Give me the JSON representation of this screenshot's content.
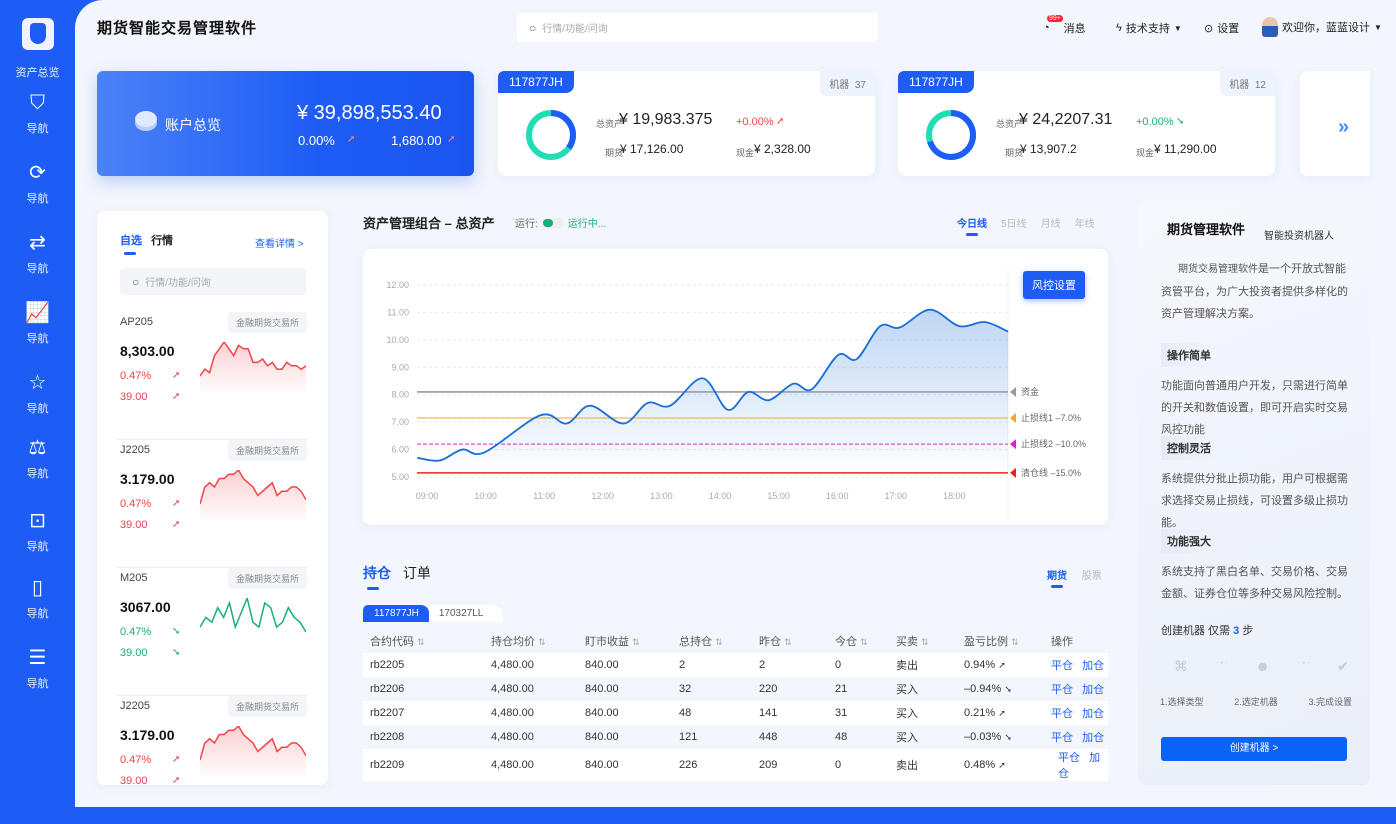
{
  "app": {
    "title": "期货智能交易管理软件"
  },
  "sidebar": {
    "logo_label": "资产总览",
    "items": [
      {
        "icon": "shield-chart-icon",
        "glyph": "⛉",
        "label": "导航"
      },
      {
        "icon": "refresh-icon",
        "glyph": "⟳",
        "label": "导航"
      },
      {
        "icon": "exchange-icon",
        "glyph": "⇄",
        "label": "导航"
      },
      {
        "icon": "trend-chart-icon",
        "glyph": "📈",
        "label": "导航"
      },
      {
        "icon": "star-icon",
        "glyph": "☆",
        "label": "导航"
      },
      {
        "icon": "gavel-icon",
        "glyph": "⚖",
        "label": "导航"
      },
      {
        "icon": "robot-icon",
        "glyph": "⊡",
        "label": "导航"
      },
      {
        "icon": "book-icon",
        "glyph": "▯",
        "label": "导航"
      },
      {
        "icon": "clipboard-icon",
        "glyph": "☰",
        "label": "导航"
      }
    ]
  },
  "header": {
    "search_placeholder": "行情/功能/问询",
    "badge": "99+",
    "messages": "消息",
    "support": "技术支持",
    "settings": "设置",
    "welcome": "欢迎你，蓝蓝设计"
  },
  "account": {
    "label": "账户总览",
    "total": "¥ 39,898,553.40",
    "change_pct": "0.00%",
    "change_amt": "1,680.00"
  },
  "accounts": [
    {
      "id": "117877JH",
      "robots_label": "机器",
      "robots": "37",
      "total_label": "总资产",
      "total": "¥ 19,983.375",
      "change": "+0.00%",
      "direction": "up",
      "futures_label": "期货",
      "futures": "¥ 17,126.00",
      "cash_label": "现金",
      "cash": "¥ 2,328.00",
      "donut_blue_fraction": 0.35
    },
    {
      "id": "117877JH",
      "robots_label": "机器",
      "robots": "12",
      "total_label": "总资产",
      "total": "¥ 24,2207.31",
      "change": "+0.00%",
      "direction": "down",
      "futures_label": "期货",
      "futures": "¥ 13,907.2",
      "cash_label": "现金",
      "cash": "¥ 11,290.00",
      "donut_blue_fraction": 0.7
    }
  ],
  "watchlist": {
    "tabs": [
      "自选",
      "行情"
    ],
    "details_link": "查看详情 >",
    "search_placeholder": "行情/功能/问询",
    "items": [
      {
        "code": "AP205",
        "exchange": "金融期货交易所",
        "price": "8,303.00",
        "pct": "0.47%",
        "amt": "39.00",
        "direction": "up",
        "spark": [
          3,
          4,
          3.5,
          6,
          7,
          8,
          7,
          6,
          7.5,
          7,
          7,
          5,
          5,
          5.5,
          4.5,
          5,
          4,
          4,
          5,
          4.5,
          4.5,
          4,
          4.5
        ]
      },
      {
        "code": "J2205",
        "exchange": "金融期货交易所",
        "price": "3.179.00",
        "pct": "0.47%",
        "amt": "39.00",
        "direction": "up",
        "spark": [
          3,
          5,
          5.5,
          5,
          6,
          6,
          6.5,
          6.5,
          7,
          6,
          5.5,
          5,
          4,
          4.5,
          5,
          5.5,
          4,
          4.5,
          4.5,
          5,
          5,
          4.5,
          3.5
        ]
      },
      {
        "code": "M205",
        "exchange": "金融期货交易所",
        "price": "3067.00",
        "pct": "0.47%",
        "amt": "39.00",
        "direction": "down",
        "spark": [
          2,
          4,
          3,
          6,
          4,
          7,
          2,
          5,
          8,
          3,
          2,
          7,
          6,
          2,
          3,
          6,
          4,
          3,
          1
        ]
      },
      {
        "code": "J2205",
        "exchange": "金融期货交易所",
        "price": "3.179.00",
        "pct": "0.47%",
        "amt": "39.00",
        "direction": "up",
        "spark": [
          3,
          5,
          5.5,
          5,
          6,
          6,
          6.5,
          6.5,
          7,
          6,
          5.5,
          5,
          4,
          4.5,
          5,
          5.5,
          4,
          4.5,
          4.5,
          5,
          5,
          4.5,
          3.5
        ]
      }
    ]
  },
  "portfolio": {
    "title": "资产管理组合 – 总资产",
    "run_label": "运行:",
    "run_status": "运行中...",
    "running": true,
    "periods": [
      "今日线",
      "5日线",
      "月线",
      "年线"
    ],
    "active_period": 0,
    "risk_button": "风控设置"
  },
  "chart_data": {
    "type": "line",
    "x": [
      "08:50",
      "09:13",
      "09:36",
      "09:59",
      "10:56",
      "11:23",
      "11:47",
      "12:21",
      "12:46",
      "13:09",
      "13:42",
      "14:08",
      "14:29",
      "14:50",
      "15:15",
      "15:34",
      "16:01",
      "16:20",
      "16:44",
      "17:04",
      "17:35",
      "18:05",
      "18:31",
      "18:55"
    ],
    "values": [
      5.7,
      5.6,
      6.0,
      5.9,
      7.25,
      6.95,
      7.6,
      6.95,
      7.7,
      7.6,
      8.6,
      7.45,
      8.1,
      7.8,
      8.4,
      8.2,
      9.45,
      9.3,
      10.5,
      10.45,
      11.1,
      10.5,
      10.65,
      10.3
    ],
    "yticks": [
      "5.00",
      "6.00",
      "7.00",
      "8.00",
      "9.00",
      "10.00",
      "11.00",
      "12.00"
    ],
    "ylim": [
      5,
      12
    ],
    "xticks": [
      "09:00",
      "10:00",
      "11:00",
      "12:00",
      "13:00",
      "14:00",
      "15:00",
      "16:00",
      "17:00",
      "18:00"
    ],
    "lines": [
      {
        "name": "资金",
        "value": 8.1,
        "color": "#9a9a9a"
      },
      {
        "name": "止损线1 –7.0%",
        "value": 7.15,
        "color": "#f5a623"
      },
      {
        "name": "止损线2 –10.0%",
        "value": 6.2,
        "color": "#e020d0"
      },
      {
        "name": "清仓线 –15.0%",
        "value": 5.15,
        "color": "#f02020"
      }
    ],
    "color": "#1a6fd6",
    "grid": true
  },
  "positions": {
    "tabs": [
      "持仓",
      "订单"
    ],
    "market_tabs": [
      "期货",
      "股票"
    ],
    "account_tabs": [
      "117877JH",
      "170327LL"
    ],
    "columns": [
      "合约代码",
      "持仓均价",
      "盯市收益",
      "总持仓",
      "昨仓",
      "今仓",
      "买卖",
      "盈亏比例",
      "操作"
    ],
    "rows": [
      {
        "code": "rb2205",
        "avg": "4,480.00",
        "pnl": "840.00",
        "total": "2",
        "yest": "2",
        "today": "0",
        "side": "卖出",
        "ratio": "0.94%",
        "dir": "up"
      },
      {
        "code": "rb2206",
        "avg": "4,480.00",
        "pnl": "840.00",
        "total": "32",
        "yest": "220",
        "today": "21",
        "side": "买入",
        "ratio": "–0.94%",
        "dir": "down"
      },
      {
        "code": "rb2207",
        "avg": "4,480.00",
        "pnl": "840.00",
        "total": "48",
        "yest": "141",
        "today": "31",
        "side": "买入",
        "ratio": "0.21%",
        "dir": "up"
      },
      {
        "code": "rb2208",
        "avg": "4,480.00",
        "pnl": "840.00",
        "total": "121",
        "yest": "448",
        "today": "48",
        "side": "买入",
        "ratio": "–0.03%",
        "dir": "down"
      },
      {
        "code": "rb2209",
        "avg": "4,480.00",
        "pnl": "840.00",
        "total": "226",
        "yest": "209",
        "today": "0",
        "side": "卖出",
        "ratio": "0.48%",
        "dir": "up"
      }
    ],
    "actions": [
      "平仓",
      "加仓"
    ]
  },
  "promo": {
    "title": "期货管理软件",
    "subtitle": "智能投资机器人",
    "intro_overlay": "期货交易管理软件",
    "intro": "是一个开放式智能资管平台，为广大投资者提供多样化的资产管理解决方案。",
    "sections": [
      {
        "title": "操作简单",
        "text": "功能面向普通用户开发，只需进行简单的开关和数值设置，即可开启实时交易风控功能"
      },
      {
        "title": "控制灵活",
        "text": "系统提供分批止损功能，用户可根据需求选择交易止损线，可设置多级止损功能。"
      },
      {
        "title": "功能强大",
        "text": "系统支持了黑白名单、交易价格、交易金额、证券仓位等多种交易风险控制。"
      }
    ],
    "steps_prefix": "创建机器  仅需",
    "steps_count": "3",
    "steps_suffix": "步",
    "steps": [
      "1.选择类型",
      "2.选定机器",
      "3.完成设置"
    ],
    "create_button": "创建机器 >"
  }
}
